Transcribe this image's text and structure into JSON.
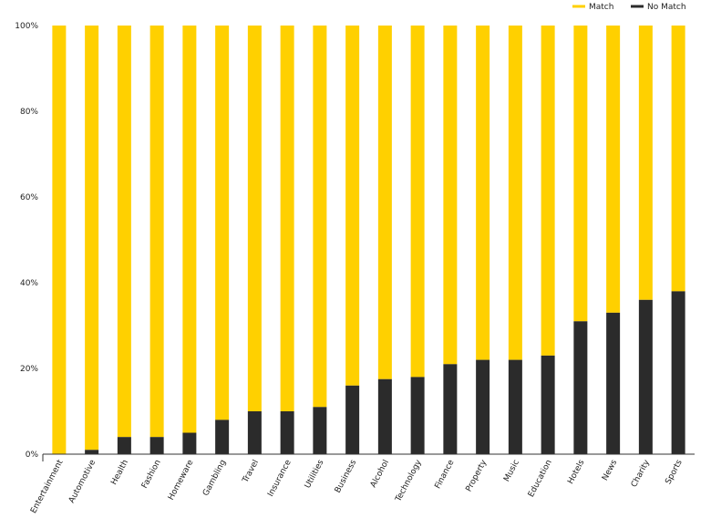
{
  "chart_data": {
    "type": "bar",
    "stacked": true,
    "percent": true,
    "categories": [
      "Entertainment",
      "Automotive",
      "Health",
      "Fashion",
      "Homeware",
      "Gambling",
      "Travel",
      "Insurance",
      "Utilities",
      "Business",
      "Alcohol",
      "Technology",
      "Finance",
      "Property",
      "Music",
      "Education",
      "Hotels",
      "News",
      "Charity",
      "Sports"
    ],
    "series": [
      {
        "name": "No Match",
        "color": "#2b2b2b",
        "values": [
          0,
          1,
          4,
          4,
          5,
          8,
          10,
          10,
          11,
          16,
          17.5,
          18,
          21,
          22,
          22,
          23,
          31,
          33,
          36,
          38
        ]
      },
      {
        "name": "Match",
        "color": "#FFD000",
        "values": [
          100,
          99,
          96,
          96,
          95,
          92,
          90,
          90,
          89,
          84,
          82.5,
          82,
          79,
          78,
          78,
          77,
          69,
          67,
          64,
          62
        ]
      }
    ],
    "ylim": [
      0,
      100
    ],
    "yticks": [
      "0%",
      "20%",
      "40%",
      "60%",
      "80%",
      "100%"
    ],
    "ytick_values": [
      0,
      20,
      40,
      60,
      80,
      100
    ],
    "legend": [
      {
        "label": "Match",
        "color": "#FFD000"
      },
      {
        "label": "No Match",
        "color": "#2b2b2b"
      }
    ],
    "legend_position": "top-right",
    "grid": false,
    "title": "",
    "xlabel": "",
    "ylabel": ""
  }
}
